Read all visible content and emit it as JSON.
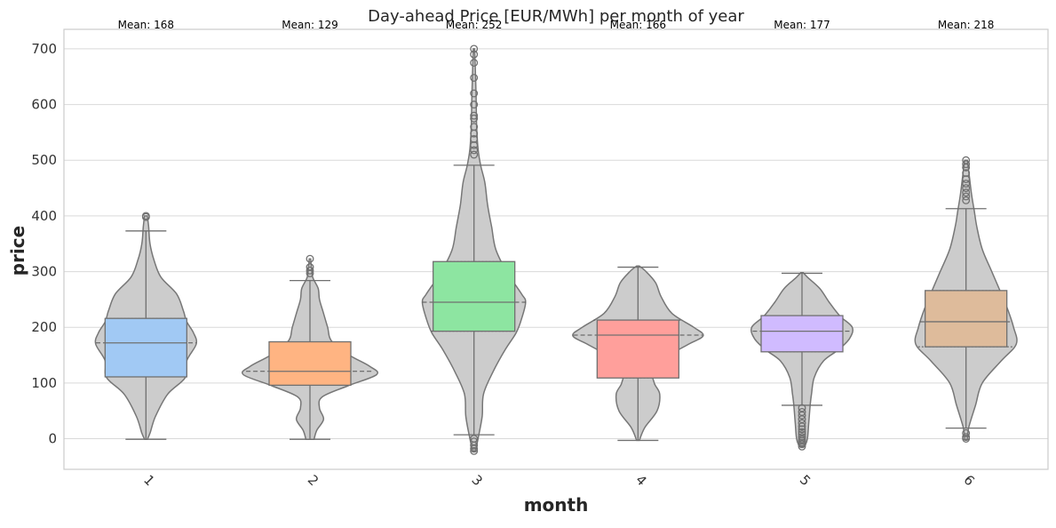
{
  "chart_data": {
    "type": "violin",
    "title": "Day-ahead Price [EUR/MWh] per month of year",
    "xlabel": "month",
    "ylabel": "price",
    "ylim": [
      -55,
      735
    ],
    "yticks": [
      0,
      100,
      200,
      300,
      400,
      500,
      600,
      700
    ],
    "grid": true,
    "categories": [
      "1",
      "2",
      "3",
      "4",
      "5",
      "6"
    ],
    "colors": {
      "violin_fill": "#cccccc",
      "violin_edge": "#777777",
      "boxes": [
        "#a1c9f4",
        "#ffb482",
        "#8de5a1",
        "#ff9f9b",
        "#d0bbff",
        "#debb9b"
      ],
      "grid": "#d9d9d9",
      "frame": "#cccccc"
    },
    "series": [
      {
        "category": "1",
        "mean_label": "Mean: 168",
        "q1": 111,
        "median": 172,
        "q3": 216,
        "whisker_low": -1,
        "whisker_high": 373,
        "outliers": [
          398,
          400
        ],
        "density": [
          [
            -1,
            2
          ],
          [
            10,
            6
          ],
          [
            40,
            14
          ],
          [
            80,
            32
          ],
          [
            110,
            58
          ],
          [
            140,
            60
          ],
          [
            170,
            74
          ],
          [
            190,
            70
          ],
          [
            210,
            60
          ],
          [
            230,
            55
          ],
          [
            260,
            45
          ],
          [
            290,
            22
          ],
          [
            320,
            12
          ],
          [
            350,
            6
          ],
          [
            380,
            4
          ],
          [
            400,
            2
          ]
        ]
      },
      {
        "category": "2",
        "mean_label": "Mean: 129",
        "q1": 96,
        "median": 121,
        "q3": 174,
        "whisker_low": -1,
        "whisker_high": 284,
        "outliers": [
          297,
          302,
          308,
          323
        ],
        "density": [
          [
            -1,
            6
          ],
          [
            15,
            10
          ],
          [
            35,
            20
          ],
          [
            55,
            14
          ],
          [
            75,
            18
          ],
          [
            95,
            56
          ],
          [
            115,
            98
          ],
          [
            130,
            88
          ],
          [
            150,
            58
          ],
          [
            175,
            32
          ],
          [
            200,
            26
          ],
          [
            225,
            20
          ],
          [
            250,
            14
          ],
          [
            270,
            12
          ],
          [
            290,
            4
          ],
          [
            310,
            2
          ],
          [
            323,
            1
          ]
        ]
      },
      {
        "category": "3",
        "mean_label": "Mean: 252",
        "q1": 193,
        "median": 245,
        "q3": 318,
        "whisker_low": 7,
        "whisker_high": 491,
        "outliers": [
          -22,
          -18,
          -12,
          -5,
          0,
          510,
          518,
          527,
          538,
          548,
          560,
          575,
          580,
          600,
          620,
          648,
          675,
          690,
          700
        ],
        "density": [
          [
            -22,
            2
          ],
          [
            0,
            6
          ],
          [
            40,
            12
          ],
          [
            80,
            14
          ],
          [
            120,
            28
          ],
          [
            160,
            46
          ],
          [
            190,
            62
          ],
          [
            215,
            70
          ],
          [
            245,
            76
          ],
          [
            260,
            70
          ],
          [
            300,
            48
          ],
          [
            340,
            32
          ],
          [
            380,
            26
          ],
          [
            420,
            20
          ],
          [
            460,
            16
          ],
          [
            490,
            10
          ],
          [
            520,
            6
          ],
          [
            560,
            4
          ],
          [
            620,
            3
          ],
          [
            700,
            1
          ]
        ]
      },
      {
        "category": "4",
        "mean_label": "Mean: 166",
        "q1": 109,
        "median": 186,
        "q3": 213,
        "whisker_low": -3,
        "whisker_high": 308,
        "outliers": [],
        "density": [
          [
            -3,
            2
          ],
          [
            20,
            10
          ],
          [
            50,
            28
          ],
          [
            80,
            32
          ],
          [
            100,
            24
          ],
          [
            125,
            22
          ],
          [
            150,
            46
          ],
          [
            170,
            75
          ],
          [
            185,
            96
          ],
          [
            200,
            82
          ],
          [
            225,
            50
          ],
          [
            255,
            34
          ],
          [
            280,
            26
          ],
          [
            300,
            12
          ],
          [
            310,
            2
          ]
        ]
      },
      {
        "category": "5",
        "mean_label": "Mean: 177",
        "q1": 156,
        "median": 193,
        "q3": 221,
        "whisker_low": 60,
        "whisker_high": 297,
        "outliers": [
          -14,
          -10,
          -7,
          -4,
          -1,
          3,
          8,
          12,
          17,
          22,
          28,
          35,
          42,
          48,
          55
        ],
        "density": [
          [
            -14,
            4
          ],
          [
            0,
            8
          ],
          [
            30,
            10
          ],
          [
            60,
            12
          ],
          [
            80,
            14
          ],
          [
            110,
            18
          ],
          [
            140,
            32
          ],
          [
            160,
            54
          ],
          [
            180,
            70
          ],
          [
            200,
            74
          ],
          [
            220,
            56
          ],
          [
            245,
            40
          ],
          [
            270,
            26
          ],
          [
            290,
            8
          ],
          [
            298,
            2
          ]
        ]
      },
      {
        "category": "6",
        "mean_label": "Mean: 218",
        "q1": 165,
        "median": 210,
        "q3": 266,
        "whisker_low": 19,
        "whisker_high": 413,
        "outliers": [
          0,
          3,
          10,
          428,
          435,
          442,
          450,
          458,
          466,
          477,
          487,
          493,
          500
        ],
        "density": [
          [
            -1,
            2
          ],
          [
            20,
            4
          ],
          [
            60,
            14
          ],
          [
            100,
            24
          ],
          [
            140,
            52
          ],
          [
            170,
            74
          ],
          [
            200,
            70
          ],
          [
            230,
            62
          ],
          [
            260,
            52
          ],
          [
            300,
            38
          ],
          [
            340,
            24
          ],
          [
            380,
            16
          ],
          [
            410,
            12
          ],
          [
            440,
            8
          ],
          [
            470,
            5
          ],
          [
            500,
            2
          ]
        ]
      }
    ]
  }
}
